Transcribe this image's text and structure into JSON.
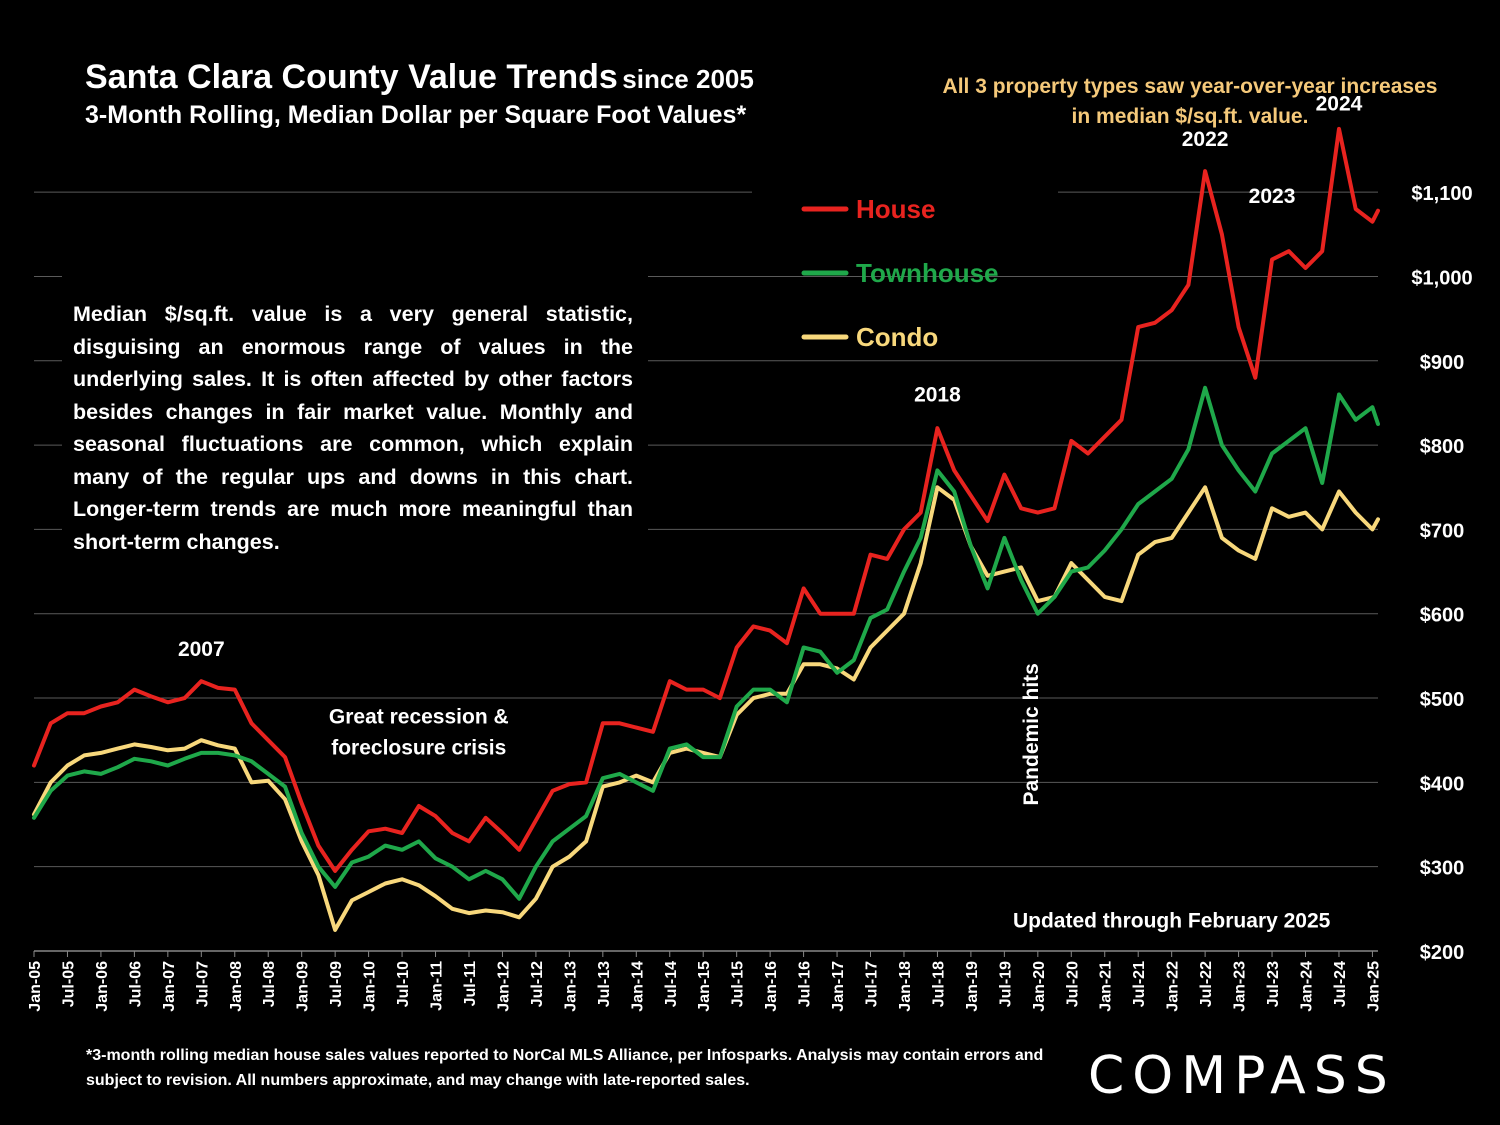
{
  "header": {
    "title": "Santa Clara County Value Trends",
    "title_suffix": "since 2005",
    "subtitle": "3-Month Rolling, Median Dollar per Square Foot Values*"
  },
  "callout": "All 3 property types saw year-over-year increases in median $/sq.ft. value.",
  "note": "Median $/sq.ft. value is a very general statistic, disguising an enormous range of values in the underlying sales. It is often affected by other factors besides changes in fair market value. Monthly and seasonal fluctuations are common, which explain many of the regular ups and downs in this chart. Longer-term trends are much more meaningful than short-term changes.",
  "footnote": "*3-month rolling median house sales values reported to NorCal MLS Alliance, per Infosparks. Analysis may contain errors and subject to revision. All numbers approximate, and may change with late-reported sales.",
  "logo": "COMPASS",
  "colors": {
    "background": "#000000",
    "house": "#e8231f",
    "townhouse": "#1fa84a",
    "condo": "#f8d87c",
    "callout": "#f5c97a"
  },
  "chart_data": {
    "type": "line",
    "ylim": [
      200,
      1150
    ],
    "y_ticks": [
      200,
      300,
      400,
      500,
      600,
      700,
      800,
      900,
      1000,
      1100
    ],
    "y_tick_labels": [
      "$200",
      "$300",
      "$400",
      "$500",
      "$600",
      "$700",
      "$800",
      "$900",
      "$1,000",
      "$1,100"
    ],
    "x_ticks": [
      "Jan-05",
      "Jul-05",
      "Jan-06",
      "Jul-06",
      "Jan-07",
      "Jul-07",
      "Jan-08",
      "Jul-08",
      "Jan-09",
      "Jul-09",
      "Jan-10",
      "Jul-10",
      "Jan-11",
      "Jul-11",
      "Jan-12",
      "Jul-12",
      "Jan-13",
      "Jul-13",
      "Jan-14",
      "Jul-14",
      "Jan-15",
      "Jul-15",
      "Jan-16",
      "Jul-16",
      "Jan-17",
      "Jul-17",
      "Jan-18",
      "Jul-18",
      "Jan-19",
      "Jul-19",
      "Jan-20",
      "Jul-20",
      "Jan-21",
      "Jul-21",
      "Jan-22",
      "Jul-22",
      "Jan-23",
      "Jul-23",
      "Jan-24",
      "Jul-24",
      "Jan-25"
    ],
    "x_range": [
      "2005-01",
      "2025-02"
    ],
    "grid": true,
    "legend": "top-center",
    "series": [
      {
        "name": "House",
        "color": "#e8231f",
        "points": [
          [
            "2005-01",
            420
          ],
          [
            "2005-04",
            470
          ],
          [
            "2005-07",
            482
          ],
          [
            "2005-10",
            482
          ],
          [
            "2006-01",
            490
          ],
          [
            "2006-04",
            495
          ],
          [
            "2006-07",
            510
          ],
          [
            "2006-10",
            502
          ],
          [
            "2007-01",
            495
          ],
          [
            "2007-04",
            500
          ],
          [
            "2007-07",
            520
          ],
          [
            "2007-10",
            512
          ],
          [
            "2008-01",
            510
          ],
          [
            "2008-04",
            470
          ],
          [
            "2008-07",
            450
          ],
          [
            "2008-10",
            430
          ],
          [
            "2009-01",
            375
          ],
          [
            "2009-04",
            325
          ],
          [
            "2009-07",
            295
          ],
          [
            "2009-10",
            320
          ],
          [
            "2010-01",
            342
          ],
          [
            "2010-04",
            345
          ],
          [
            "2010-07",
            340
          ],
          [
            "2010-10",
            372
          ],
          [
            "2011-01",
            360
          ],
          [
            "2011-04",
            340
          ],
          [
            "2011-07",
            330
          ],
          [
            "2011-10",
            358
          ],
          [
            "2012-01",
            340
          ],
          [
            "2012-04",
            320
          ],
          [
            "2012-07",
            355
          ],
          [
            "2012-10",
            390
          ],
          [
            "2013-01",
            398
          ],
          [
            "2013-04",
            400
          ],
          [
            "2013-07",
            470
          ],
          [
            "2013-10",
            470
          ],
          [
            "2014-01",
            465
          ],
          [
            "2014-04",
            460
          ],
          [
            "2014-07",
            520
          ],
          [
            "2014-10",
            510
          ],
          [
            "2015-01",
            510
          ],
          [
            "2015-04",
            500
          ],
          [
            "2015-07",
            560
          ],
          [
            "2015-10",
            585
          ],
          [
            "2016-01",
            580
          ],
          [
            "2016-04",
            565
          ],
          [
            "2016-07",
            630
          ],
          [
            "2016-10",
            600
          ],
          [
            "2017-01",
            600
          ],
          [
            "2017-04",
            600
          ],
          [
            "2017-07",
            670
          ],
          [
            "2017-10",
            665
          ],
          [
            "2018-01",
            700
          ],
          [
            "2018-04",
            720
          ],
          [
            "2018-07",
            820
          ],
          [
            "2018-10",
            770
          ],
          [
            "2019-01",
            740
          ],
          [
            "2019-04",
            710
          ],
          [
            "2019-07",
            765
          ],
          [
            "2019-10",
            725
          ],
          [
            "2020-01",
            720
          ],
          [
            "2020-04",
            725
          ],
          [
            "2020-07",
            805
          ],
          [
            "2020-10",
            790
          ],
          [
            "2021-01",
            810
          ],
          [
            "2021-04",
            830
          ],
          [
            "2021-07",
            940
          ],
          [
            "2021-10",
            945
          ],
          [
            "2022-01",
            960
          ],
          [
            "2022-04",
            990
          ],
          [
            "2022-07",
            1125
          ],
          [
            "2022-10",
            1050
          ],
          [
            "2023-01",
            940
          ],
          [
            "2023-04",
            880
          ],
          [
            "2023-07",
            1020
          ],
          [
            "2023-10",
            1030
          ],
          [
            "2024-01",
            1010
          ],
          [
            "2024-04",
            1030
          ],
          [
            "2024-07",
            1175
          ],
          [
            "2024-10",
            1080
          ],
          [
            "2025-01",
            1065
          ],
          [
            "2025-02",
            1078
          ]
        ]
      },
      {
        "name": "Townhouse",
        "color": "#1fa84a",
        "points": [
          [
            "2005-01",
            358
          ],
          [
            "2005-04",
            390
          ],
          [
            "2005-07",
            408
          ],
          [
            "2005-10",
            413
          ],
          [
            "2006-01",
            410
          ],
          [
            "2006-04",
            418
          ],
          [
            "2006-07",
            428
          ],
          [
            "2006-10",
            425
          ],
          [
            "2007-01",
            420
          ],
          [
            "2007-04",
            428
          ],
          [
            "2007-07",
            435
          ],
          [
            "2007-10",
            435
          ],
          [
            "2008-01",
            432
          ],
          [
            "2008-04",
            425
          ],
          [
            "2008-07",
            410
          ],
          [
            "2008-10",
            395
          ],
          [
            "2009-01",
            340
          ],
          [
            "2009-04",
            300
          ],
          [
            "2009-07",
            276
          ],
          [
            "2009-10",
            305
          ],
          [
            "2010-01",
            312
          ],
          [
            "2010-04",
            325
          ],
          [
            "2010-07",
            320
          ],
          [
            "2010-10",
            330
          ],
          [
            "2011-01",
            310
          ],
          [
            "2011-04",
            300
          ],
          [
            "2011-07",
            285
          ],
          [
            "2011-10",
            295
          ],
          [
            "2012-01",
            285
          ],
          [
            "2012-04",
            262
          ],
          [
            "2012-07",
            300
          ],
          [
            "2012-10",
            330
          ],
          [
            "2013-01",
            345
          ],
          [
            "2013-04",
            360
          ],
          [
            "2013-07",
            405
          ],
          [
            "2013-10",
            410
          ],
          [
            "2014-01",
            400
          ],
          [
            "2014-04",
            390
          ],
          [
            "2014-07",
            440
          ],
          [
            "2014-10",
            445
          ],
          [
            "2015-01",
            430
          ],
          [
            "2015-04",
            430
          ],
          [
            "2015-07",
            490
          ],
          [
            "2015-10",
            510
          ],
          [
            "2016-01",
            510
          ],
          [
            "2016-04",
            495
          ],
          [
            "2016-07",
            560
          ],
          [
            "2016-10",
            555
          ],
          [
            "2017-01",
            530
          ],
          [
            "2017-04",
            545
          ],
          [
            "2017-07",
            595
          ],
          [
            "2017-10",
            605
          ],
          [
            "2018-01",
            650
          ],
          [
            "2018-04",
            690
          ],
          [
            "2018-07",
            770
          ],
          [
            "2018-10",
            745
          ],
          [
            "2019-01",
            680
          ],
          [
            "2019-04",
            630
          ],
          [
            "2019-07",
            690
          ],
          [
            "2019-10",
            640
          ],
          [
            "2020-01",
            600
          ],
          [
            "2020-04",
            620
          ],
          [
            "2020-07",
            650
          ],
          [
            "2020-10",
            655
          ],
          [
            "2021-01",
            675
          ],
          [
            "2021-04",
            700
          ],
          [
            "2021-07",
            730
          ],
          [
            "2021-10",
            745
          ],
          [
            "2022-01",
            760
          ],
          [
            "2022-04",
            795
          ],
          [
            "2022-07",
            868
          ],
          [
            "2022-10",
            800
          ],
          [
            "2023-01",
            770
          ],
          [
            "2023-04",
            745
          ],
          [
            "2023-07",
            790
          ],
          [
            "2023-10",
            805
          ],
          [
            "2024-01",
            820
          ],
          [
            "2024-04",
            755
          ],
          [
            "2024-07",
            860
          ],
          [
            "2024-10",
            830
          ],
          [
            "2025-01",
            845
          ],
          [
            "2025-02",
            825
          ]
        ]
      },
      {
        "name": "Condo",
        "color": "#f8d87c",
        "points": [
          [
            "2005-01",
            362
          ],
          [
            "2005-04",
            400
          ],
          [
            "2005-07",
            420
          ],
          [
            "2005-10",
            432
          ],
          [
            "2006-01",
            435
          ],
          [
            "2006-04",
            440
          ],
          [
            "2006-07",
            445
          ],
          [
            "2006-10",
            442
          ],
          [
            "2007-01",
            438
          ],
          [
            "2007-04",
            440
          ],
          [
            "2007-07",
            450
          ],
          [
            "2007-10",
            444
          ],
          [
            "2008-01",
            440
          ],
          [
            "2008-04",
            400
          ],
          [
            "2008-07",
            402
          ],
          [
            "2008-10",
            380
          ],
          [
            "2009-01",
            330
          ],
          [
            "2009-04",
            290
          ],
          [
            "2009-07",
            225
          ],
          [
            "2009-10",
            260
          ],
          [
            "2010-01",
            270
          ],
          [
            "2010-04",
            280
          ],
          [
            "2010-07",
            285
          ],
          [
            "2010-10",
            278
          ],
          [
            "2011-01",
            265
          ],
          [
            "2011-04",
            250
          ],
          [
            "2011-07",
            245
          ],
          [
            "2011-10",
            248
          ],
          [
            "2012-01",
            246
          ],
          [
            "2012-04",
            240
          ],
          [
            "2012-07",
            262
          ],
          [
            "2012-10",
            300
          ],
          [
            "2013-01",
            312
          ],
          [
            "2013-04",
            330
          ],
          [
            "2013-07",
            395
          ],
          [
            "2013-10",
            400
          ],
          [
            "2014-01",
            408
          ],
          [
            "2014-04",
            400
          ],
          [
            "2014-07",
            435
          ],
          [
            "2014-10",
            440
          ],
          [
            "2015-01",
            435
          ],
          [
            "2015-04",
            430
          ],
          [
            "2015-07",
            480
          ],
          [
            "2015-10",
            500
          ],
          [
            "2016-01",
            505
          ],
          [
            "2016-04",
            505
          ],
          [
            "2016-07",
            540
          ],
          [
            "2016-10",
            540
          ],
          [
            "2017-01",
            535
          ],
          [
            "2017-04",
            522
          ],
          [
            "2017-07",
            560
          ],
          [
            "2017-10",
            580
          ],
          [
            "2018-01",
            600
          ],
          [
            "2018-04",
            660
          ],
          [
            "2018-07",
            750
          ],
          [
            "2018-10",
            735
          ],
          [
            "2019-01",
            680
          ],
          [
            "2019-04",
            645
          ],
          [
            "2019-07",
            650
          ],
          [
            "2019-10",
            655
          ],
          [
            "2020-01",
            615
          ],
          [
            "2020-04",
            620
          ],
          [
            "2020-07",
            660
          ],
          [
            "2020-10",
            640
          ],
          [
            "2021-01",
            620
          ],
          [
            "2021-04",
            615
          ],
          [
            "2021-07",
            670
          ],
          [
            "2021-10",
            685
          ],
          [
            "2022-01",
            690
          ],
          [
            "2022-04",
            720
          ],
          [
            "2022-07",
            750
          ],
          [
            "2022-10",
            690
          ],
          [
            "2023-01",
            675
          ],
          [
            "2023-04",
            665
          ],
          [
            "2023-07",
            725
          ],
          [
            "2023-10",
            715
          ],
          [
            "2024-01",
            720
          ],
          [
            "2024-04",
            700
          ],
          [
            "2024-07",
            745
          ],
          [
            "2024-10",
            720
          ],
          [
            "2025-01",
            700
          ],
          [
            "2025-02",
            712
          ]
        ]
      }
    ],
    "annotations": [
      {
        "text": "2007",
        "x": "2007-07",
        "y": 550
      },
      {
        "text": "Great recession &",
        "x": "2010-10",
        "y": 470
      },
      {
        "text": "foreclosure crisis",
        "x": "2010-10",
        "y": 433
      },
      {
        "text": "2018",
        "x": "2018-07",
        "y": 852
      },
      {
        "text": "2022",
        "x": "2022-07",
        "y": 1155
      },
      {
        "text": "2023",
        "x": "2023-07",
        "y": 1087
      },
      {
        "text": "2024",
        "x": "2024-07",
        "y": 1197
      },
      {
        "text": "Updated through February 2025",
        "x": "2022-01",
        "y": 228
      }
    ],
    "vertical_annotation": {
      "text": "Pandemic hits",
      "x": "2020-01",
      "y": 457
    }
  }
}
